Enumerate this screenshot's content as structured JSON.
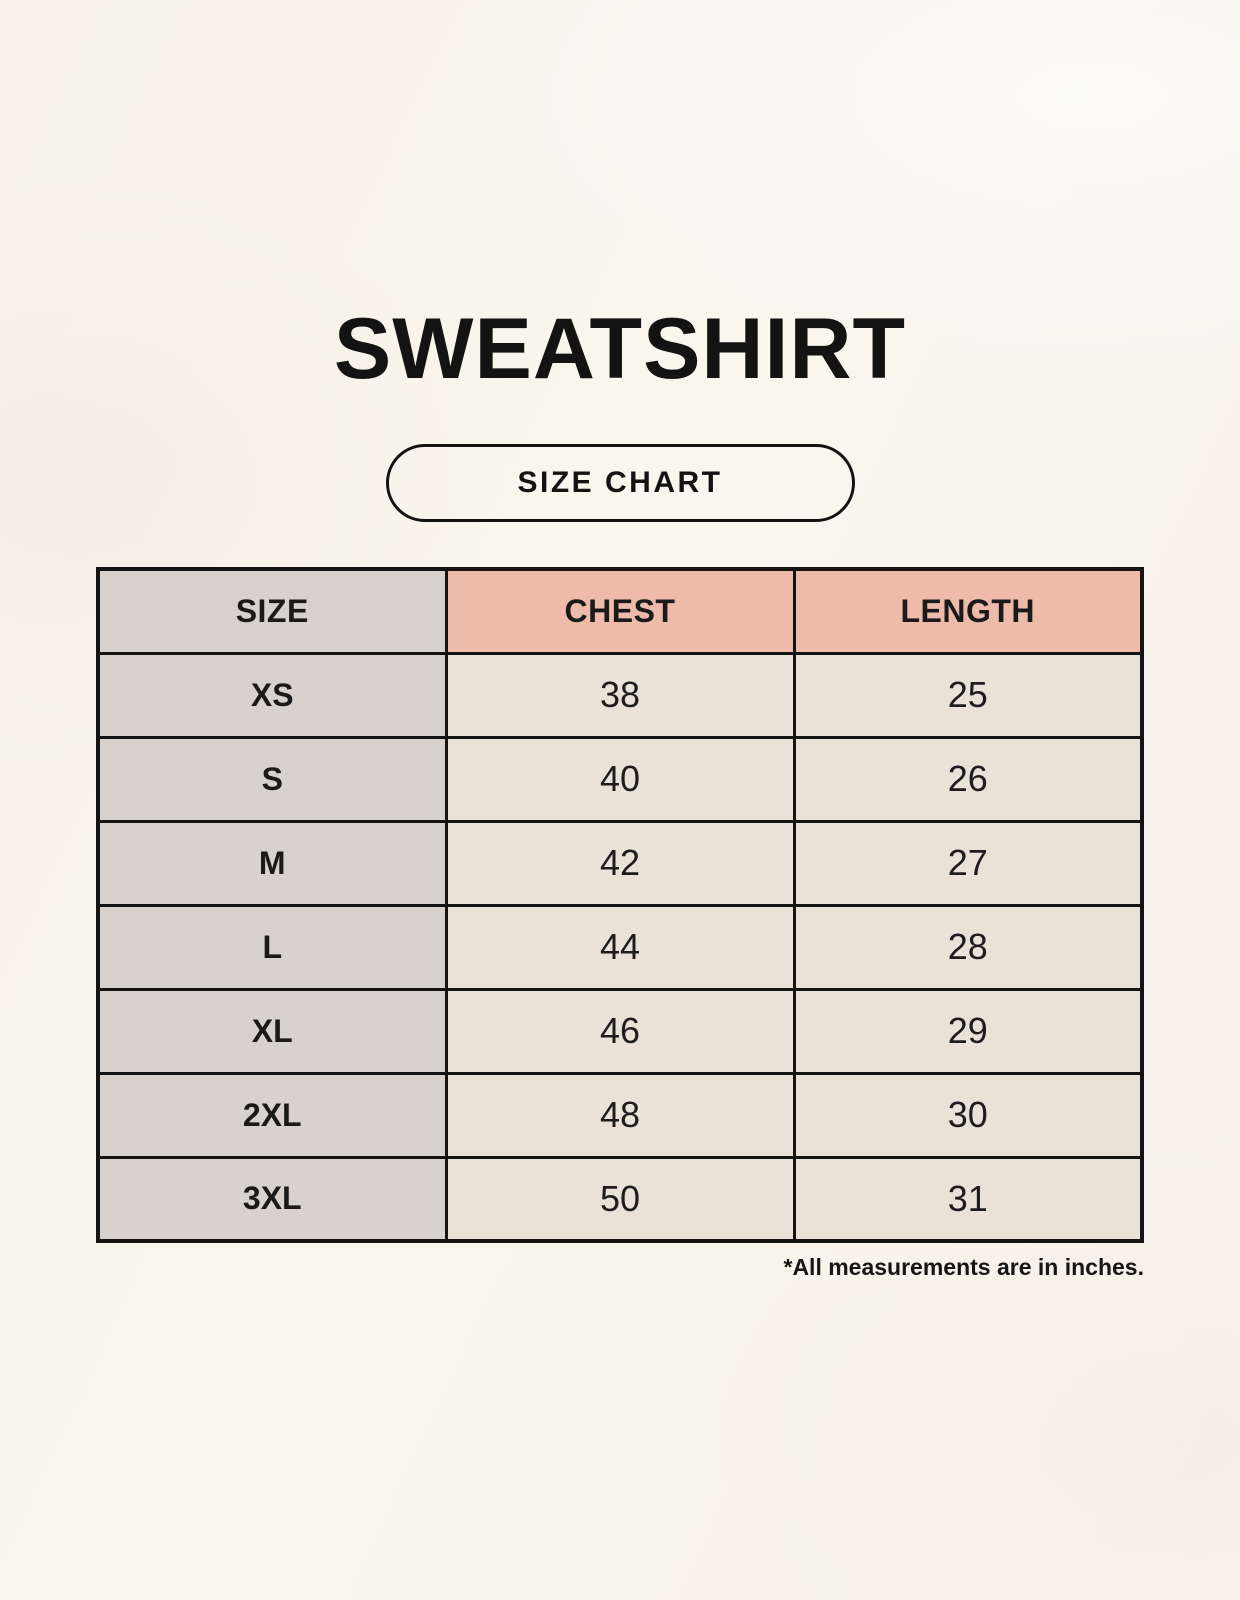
{
  "title": "SWEATSHIRT",
  "badge": {
    "label": "SIZE CHART"
  },
  "table": {
    "columns": [
      "SIZE",
      "CHEST",
      "LENGTH"
    ],
    "rows": [
      {
        "size": "XS",
        "chest": "38",
        "length": "25"
      },
      {
        "size": "S",
        "chest": "40",
        "length": "26"
      },
      {
        "size": "M",
        "chest": "42",
        "length": "27"
      },
      {
        "size": "L",
        "chest": "44",
        "length": "28"
      },
      {
        "size": "XL",
        "chest": "46",
        "length": "29"
      },
      {
        "size": "2XL",
        "chest": "48",
        "length": "30"
      },
      {
        "size": "3XL",
        "chest": "50",
        "length": "31"
      }
    ]
  },
  "footnote": "*All measurements are in inches.",
  "colors": {
    "page_background": "#f8f4ec",
    "size_column_background": "#d8d2ce",
    "header_accent_background": "#eebbaa",
    "data_cell_background": "#e9e2d7",
    "table_border": "#141414",
    "text": "#1a1a1a"
  },
  "chart_data": {
    "type": "table",
    "title": "SWEATSHIRT",
    "subtitle": "SIZE CHART",
    "columns": [
      "SIZE",
      "CHEST",
      "LENGTH"
    ],
    "rows": [
      [
        "XS",
        38,
        25
      ],
      [
        "S",
        40,
        26
      ],
      [
        "M",
        42,
        27
      ],
      [
        "L",
        44,
        28
      ],
      [
        "XL",
        46,
        29
      ],
      [
        "2XL",
        48,
        30
      ],
      [
        "3XL",
        50,
        31
      ]
    ],
    "units": "inches"
  }
}
